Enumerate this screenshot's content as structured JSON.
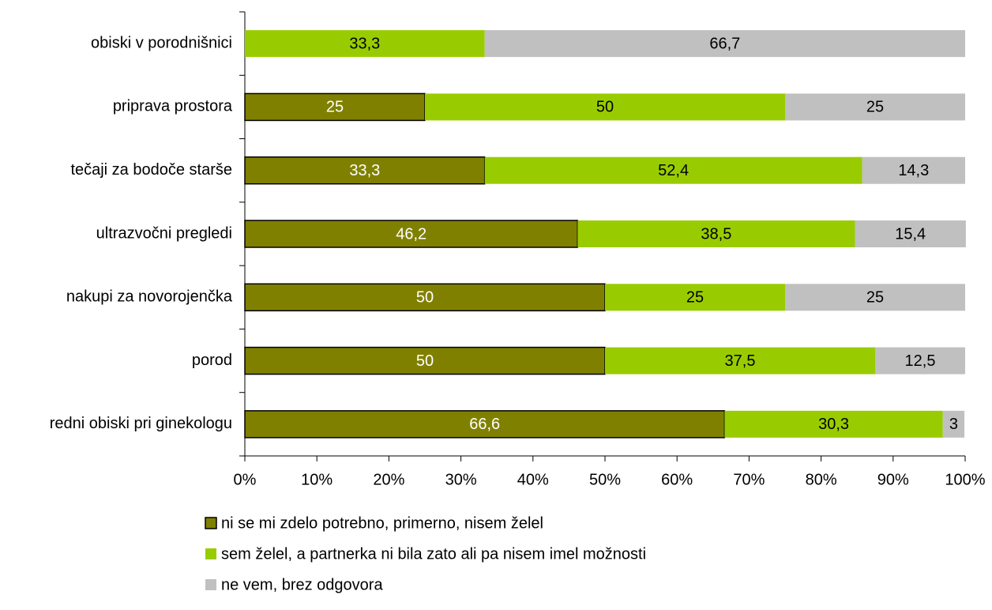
{
  "chart_data": {
    "type": "stacked_barh",
    "categories": [
      "obiski v porodnišnici",
      "priprava prostora",
      "tečaji za bodoče starše",
      "ultrazvočni pregledi",
      "nakupi za novorojenčka",
      "porod",
      "redni obiski pri ginekologu"
    ],
    "series": [
      {
        "name": "ni se mi zdelo potrebno, primerno, nisem želel",
        "color": "#808000",
        "label_color": "#ffffff",
        "values": [
          null,
          25,
          33.3,
          46.2,
          50,
          50,
          66.6
        ],
        "value_labels": [
          null,
          "25",
          "33,3",
          "46,2",
          "50",
          "50",
          "66,6"
        ]
      },
      {
        "name": "sem želel, a partnerka ni bila zato ali pa nisem imel možnosti",
        "color": "#99cc00",
        "label_color": "#000000",
        "values": [
          33.3,
          50,
          52.4,
          38.5,
          25,
          37.5,
          30.3
        ],
        "value_labels": [
          "33,3",
          "50",
          "52,4",
          "38,5",
          "25",
          "37,5",
          "30,3"
        ]
      },
      {
        "name": "ne vem, brez odgovora",
        "color": "#c0c0c0",
        "label_color": "#000000",
        "values": [
          66.7,
          25,
          14.3,
          15.4,
          25,
          12.5,
          3
        ],
        "value_labels": [
          "66,7",
          "25",
          "14,3",
          "15,4",
          "25",
          "12,5",
          "3"
        ]
      }
    ],
    "xlim": [
      0,
      100
    ],
    "xticks": [
      {
        "value": 0,
        "label": "0%"
      },
      {
        "value": 10,
        "label": "10%"
      },
      {
        "value": 20,
        "label": "20%"
      },
      {
        "value": 30,
        "label": "30%"
      },
      {
        "value": 40,
        "label": "40%"
      },
      {
        "value": 50,
        "label": "50%"
      },
      {
        "value": 60,
        "label": "60%"
      },
      {
        "value": 70,
        "label": "70%"
      },
      {
        "value": 80,
        "label": "80%"
      },
      {
        "value": 90,
        "label": "90%"
      },
      {
        "value": 100,
        "label": "100%"
      }
    ],
    "legend": "bottom"
  }
}
